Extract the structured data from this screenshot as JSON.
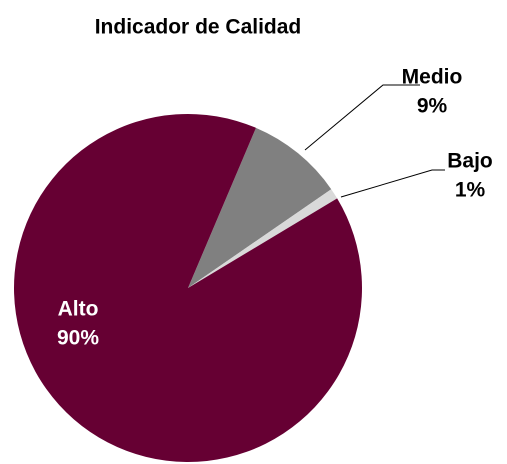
{
  "chart_data": {
    "type": "pie",
    "title": "Indicador de Calidad",
    "categories": [
      "Medio",
      "Bajo",
      "Alto"
    ],
    "values": [
      9,
      1,
      90
    ],
    "value_labels": [
      "9%",
      "1%",
      "90%"
    ],
    "colors": [
      "#808080",
      "#d9d9d9",
      "#660033"
    ]
  }
}
